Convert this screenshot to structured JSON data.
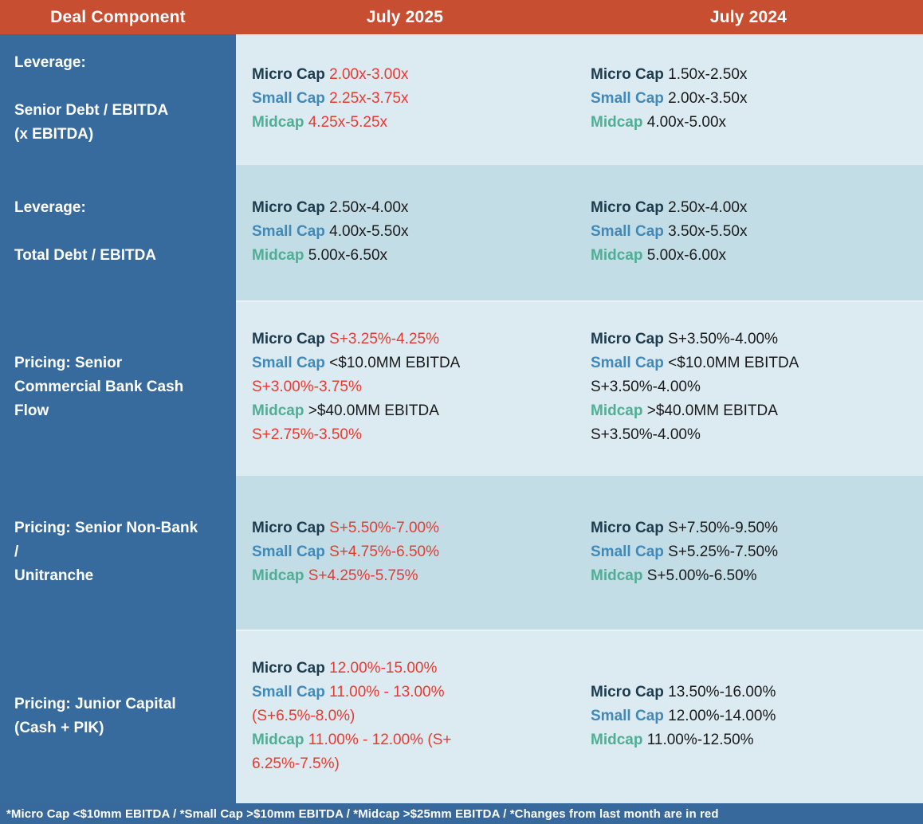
{
  "header": {
    "deal_component": "Deal Component",
    "july_2025": "July 2025",
    "july_2024": "July 2024"
  },
  "colors": {
    "header_bg": "#C74E31",
    "sidebar_bg": "#376A9D",
    "footer_bg": "#37699C",
    "row_light": "#DCEAF2",
    "row_dark": "#C3DDE7",
    "micro_cap_label": "#1C3C4E",
    "small_cap_label": "#4089B8",
    "midcap_label": "#4FAE93",
    "changed_value": "#E73B30",
    "value": "#1A1A1A"
  },
  "tiers": [
    "Micro Cap",
    "Small Cap",
    "Midcap"
  ],
  "rows": [
    {
      "shade": "light",
      "component": {
        "title": "Leverage:",
        "subtitle": "Senior Debt / EBITDA\n(x EBITDA)"
      },
      "july_2025": [
        {
          "label": "Micro Cap",
          "segments": [
            {
              "text": "2.00x-3.00x",
              "changed": true
            }
          ]
        },
        {
          "label": "Small Cap",
          "segments": [
            {
              "text": "2.25x-3.75x",
              "changed": true
            }
          ]
        },
        {
          "label": "Midcap",
          "segments": [
            {
              "text": "4.25x-5.25x",
              "changed": true
            }
          ]
        }
      ],
      "july_2024": [
        {
          "label": "Micro Cap",
          "segments": [
            {
              "text": "1.50x-2.50x",
              "changed": false
            }
          ]
        },
        {
          "label": "Small Cap",
          "segments": [
            {
              "text": "2.00x-3.50x",
              "changed": false
            }
          ]
        },
        {
          "label": "Midcap",
          "segments": [
            {
              "text": "4.00x-5.00x",
              "changed": false
            }
          ]
        }
      ]
    },
    {
      "shade": "dark",
      "component": {
        "title": "Leverage:",
        "subtitle": "Total Debt / EBITDA"
      },
      "july_2025": [
        {
          "label": "Micro Cap",
          "segments": [
            {
              "text": "2.50x-4.00x",
              "changed": false
            }
          ]
        },
        {
          "label": "Small Cap",
          "segments": [
            {
              "text": "4.00x-5.50x",
              "changed": false
            }
          ]
        },
        {
          "label": "Midcap",
          "segments": [
            {
              "text": "5.00x-6.50x",
              "changed": false
            }
          ]
        }
      ],
      "july_2024": [
        {
          "label": "Micro Cap",
          "segments": [
            {
              "text": "2.50x-4.00x",
              "changed": false
            }
          ]
        },
        {
          "label": "Small Cap",
          "segments": [
            {
              "text": "3.50x-5.50x",
              "changed": false
            }
          ]
        },
        {
          "label": "Midcap",
          "segments": [
            {
              "text": "5.00x-6.00x",
              "changed": false
            }
          ]
        }
      ]
    },
    {
      "shade": "light",
      "component": {
        "title": "Pricing: Senior\nCommercial Bank Cash\nFlow",
        "subtitle": ""
      },
      "july_2025": [
        {
          "label": "Micro Cap",
          "segments": [
            {
              "text": "S+3.25%-4.25%",
              "changed": true
            }
          ]
        },
        {
          "label": "Small Cap",
          "segments": [
            {
              "text": "<$10.0MM EBITDA ",
              "changed": false
            },
            {
              "text": "S+3.00%-3.75%",
              "changed": true
            }
          ]
        },
        {
          "label": "Midcap",
          "segments": [
            {
              "text": ">$40.0MM EBITDA ",
              "changed": false
            },
            {
              "text": "S+2.75%-3.50%",
              "changed": true
            }
          ]
        }
      ],
      "july_2024": [
        {
          "label": "Micro Cap",
          "segments": [
            {
              "text": "S+3.50%-4.00%",
              "changed": false
            }
          ]
        },
        {
          "label": "Small Cap",
          "segments": [
            {
              "text": "<$10.0MM EBITDA S+3.50%-4.00%",
              "changed": false
            }
          ]
        },
        {
          "label": "Midcap",
          "segments": [
            {
              "text": ">$40.0MM EBITDA S+3.50%-4.00%",
              "changed": false
            }
          ]
        }
      ]
    },
    {
      "shade": "dark",
      "component": {
        "title": "Pricing: Senior Non-Bank /\nUnitranche",
        "subtitle": ""
      },
      "july_2025": [
        {
          "label": "Micro Cap",
          "segments": [
            {
              "text": "S+5.50%-7.00%",
              "changed": true
            }
          ]
        },
        {
          "label": "Small Cap",
          "segments": [
            {
              "text": "S+4.75%-6.50%",
              "changed": true
            }
          ]
        },
        {
          "label": "Midcap",
          "segments": [
            {
              "text": "S+4.25%-5.75%",
              "changed": true
            }
          ]
        }
      ],
      "july_2024": [
        {
          "label": "Micro Cap",
          "segments": [
            {
              "text": "S+7.50%-9.50%",
              "changed": false
            }
          ]
        },
        {
          "label": "Small Cap",
          "segments": [
            {
              "text": "S+5.25%-7.50%",
              "changed": false
            }
          ]
        },
        {
          "label": "Midcap",
          "segments": [
            {
              "text": "S+5.00%-6.50%",
              "changed": false
            }
          ]
        }
      ]
    },
    {
      "shade": "light",
      "component": {
        "title": "Pricing: Junior Capital\n(Cash + PIK)",
        "subtitle": ""
      },
      "july_2025": [
        {
          "label": "Micro Cap",
          "segments": [
            {
              "text": "12.00%-15.00%",
              "changed": true
            }
          ]
        },
        {
          "label": "Small Cap",
          "segments": [
            {
              "text": "11.00% - 13.00% (S+6.5%-8.0%)",
              "changed": true
            }
          ]
        },
        {
          "label": "Midcap",
          "segments": [
            {
              "text": "11.00% - 12.00% (S+ 6.25%-7.5%)",
              "changed": true
            }
          ]
        }
      ],
      "july_2024": [
        {
          "label": "Micro Cap",
          "segments": [
            {
              "text": "13.50%-16.00%",
              "changed": false
            }
          ]
        },
        {
          "label": "Small Cap",
          "segments": [
            {
              "text": "12.00%-14.00%",
              "changed": false
            }
          ]
        },
        {
          "label": "Midcap",
          "segments": [
            {
              "text": "11.00%-12.50%",
              "changed": false
            }
          ]
        }
      ]
    }
  ],
  "footnote": "*Micro Cap <$10mm EBITDA / *Small Cap >$10mm EBITDA / *Midcap >$25mm EBITDA / *Changes from last month are in red"
}
